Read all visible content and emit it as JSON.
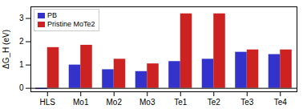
{
  "chart_data": {
    "type": "bar",
    "categories": [
      "HLS",
      "Mo1",
      "Mo2",
      "Mo3",
      "Te1",
      "Te2",
      "Te3",
      "Te4"
    ],
    "series": [
      {
        "name": "PB",
        "color": "#3333cc",
        "values": [
          -0.05,
          1.0,
          0.8,
          0.72,
          1.15,
          1.25,
          1.55,
          1.45
        ]
      },
      {
        "name": "Pristine MoTe2",
        "color": "#cc2222",
        "values": [
          1.75,
          1.85,
          1.25,
          1.05,
          3.2,
          3.2,
          1.65,
          1.65
        ]
      }
    ],
    "ylabel": "ΔG_H (eV)",
    "ylim": [
      -0.15,
      3.5
    ],
    "yticks": [
      0,
      1,
      2,
      3
    ],
    "legend": "upper left",
    "grid": false
  }
}
